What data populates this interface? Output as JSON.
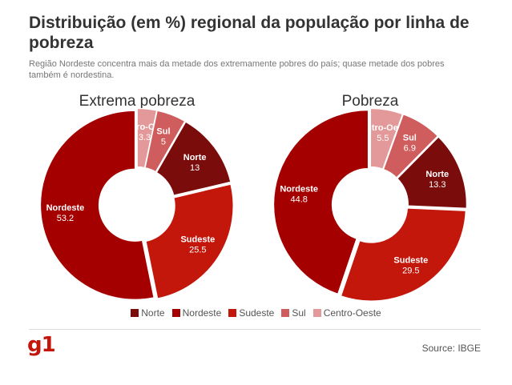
{
  "header": {
    "title": "Distribuição (em %) regional da população por linha de pobreza",
    "subtitle": "Região Nordeste concentra mais da metade dos extremamente pobres do país; quase metade dos pobres também é nordestina."
  },
  "colors": {
    "Norte": "#7b0c0c",
    "Nordeste": "#a50000",
    "Sudeste": "#c4170c",
    "Sul": "#d05d5d",
    "Centro-Oeste": "#e39999"
  },
  "chart_data": [
    {
      "type": "pie",
      "title": "Extrema pobreza",
      "categories": [
        "Centro-Oeste",
        "Sul",
        "Norte",
        "Sudeste",
        "Nordeste"
      ],
      "values": [
        3.3,
        5,
        13,
        25.5,
        53.2
      ],
      "value_labels": [
        "3.3",
        "5",
        "13",
        "25.5",
        "53.2"
      ]
    },
    {
      "type": "pie",
      "title": "Pobreza",
      "categories": [
        "Centro-Oeste",
        "Sul",
        "Norte",
        "Sudeste",
        "Nordeste"
      ],
      "values": [
        5.5,
        6.9,
        13.3,
        29.5,
        44.8
      ],
      "value_labels": [
        "5.5",
        "6.9",
        "13.3",
        "29.5",
        "44.8"
      ]
    }
  ],
  "legend": [
    "Norte",
    "Nordeste",
    "Sudeste",
    "Sul",
    "Centro-Oeste"
  ],
  "footer": {
    "logo": "g1",
    "source": "Source: IBGE"
  }
}
